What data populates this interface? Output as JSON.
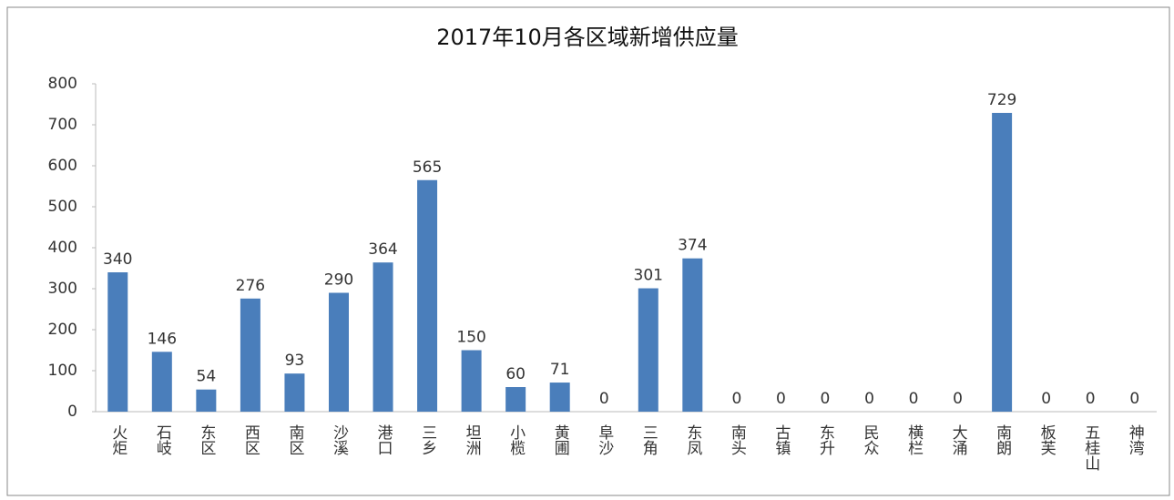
{
  "chart_data": {
    "type": "bar",
    "title": "2017年10月各区域新增供应量",
    "categories": [
      "火炬",
      "石岐",
      "东区",
      "西区",
      "南区",
      "沙溪",
      "港口",
      "三乡",
      "坦洲",
      "小榄",
      "黄圃",
      "阜沙",
      "三角",
      "东凤",
      "南头",
      "古镇",
      "东升",
      "民众",
      "横栏",
      "大涌",
      "南朗",
      "板芙",
      "五桂山",
      "神湾"
    ],
    "values": [
      340,
      146,
      54,
      276,
      93,
      290,
      364,
      565,
      150,
      60,
      71,
      0,
      301,
      374,
      0,
      0,
      0,
      0,
      0,
      0,
      729,
      0,
      0,
      0
    ],
    "color": "#4a7ebb",
    "ylim": [
      0,
      800
    ],
    "yticks": [
      0,
      100,
      200,
      300,
      400,
      500,
      600,
      700,
      800
    ],
    "grid": false
  }
}
